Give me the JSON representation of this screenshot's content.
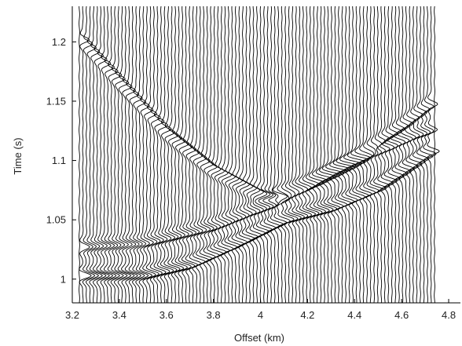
{
  "chart_data": {
    "type": "line",
    "title": "",
    "xlabel": "Offset (km)",
    "ylabel": "Time (s)",
    "xlim": [
      3.2,
      4.85
    ],
    "ylim": [
      0.98,
      1.23
    ],
    "y_reversed": false,
    "grid": false,
    "legend": "none",
    "x_ticks": [
      "3.2",
      "3.4",
      "3.6",
      "3.8",
      "4",
      "4.2",
      "4.4",
      "4.6",
      "4.8"
    ],
    "y_ticks": [
      "1",
      "1.05",
      "1.1",
      "1.15",
      "1.2"
    ],
    "trace_color": "#000000",
    "trace_count": 101,
    "trace_offset_range": [
      3.23,
      4.74
    ],
    "events": [
      {
        "name": "",
        "offsets": [
          3.23,
          3.4,
          3.6,
          3.8,
          4.0,
          4.1,
          4.2,
          4.4,
          4.6,
          4.74
        ],
        "times": [
          1.205,
          1.168,
          1.125,
          1.093,
          1.072,
          1.068,
          1.077,
          1.1,
          1.128,
          1.15
        ]
      },
      {
        "name": "",
        "offsets": [
          3.23,
          3.5,
          3.7,
          3.9,
          4.0,
          4.1,
          4.3,
          4.5,
          4.65,
          4.74
        ],
        "times": [
          1.003,
          1.003,
          1.012,
          1.03,
          1.04,
          1.05,
          1.06,
          1.077,
          1.097,
          1.11
        ]
      },
      {
        "name": "",
        "offsets": [
          3.23,
          3.5,
          3.8,
          3.95,
          4.05,
          4.1
        ],
        "times": [
          1.027,
          1.03,
          1.044,
          1.056,
          1.063,
          1.066
        ]
      },
      {
        "name": "",
        "offsets": [
          4.07,
          4.2,
          4.4,
          4.55,
          4.65,
          4.74
        ],
        "times": [
          1.07,
          1.08,
          1.099,
          1.112,
          1.121,
          1.127
        ]
      }
    ]
  }
}
